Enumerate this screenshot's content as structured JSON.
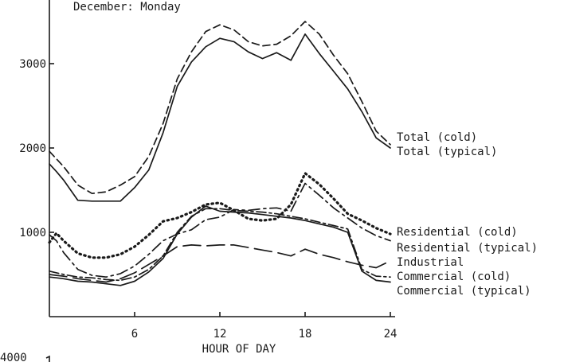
{
  "chart_data": {
    "type": "line",
    "title": "December: Monday",
    "xlabel": "HOUR OF DAY",
    "ylabel": "",
    "xlim": [
      0,
      24
    ],
    "ylim": [
      0,
      4000
    ],
    "x_ticks": [
      6,
      12,
      18,
      24
    ],
    "y_ticks": [
      1000,
      2000,
      3000
    ],
    "lower_panel_top_label": "4000",
    "grid": false,
    "x": [
      0,
      0.5,
      1,
      2,
      3,
      4,
      5,
      6,
      7,
      8,
      9,
      10,
      11,
      12,
      13,
      14,
      15,
      16,
      17,
      18,
      19,
      20,
      21,
      22,
      23,
      24
    ],
    "series": [
      {
        "name": "Total (cold)",
        "style": "dashed",
        "values": [
          1960,
          1870,
          1780,
          1560,
          1460,
          1480,
          1560,
          1660,
          1900,
          2290,
          2820,
          3140,
          3380,
          3460,
          3400,
          3260,
          3210,
          3230,
          3330,
          3500,
          3350,
          3100,
          2880,
          2550,
          2200,
          2040
        ]
      },
      {
        "name": "Total (typical)",
        "style": "solid",
        "values": [
          1810,
          1720,
          1620,
          1380,
          1370,
          1370,
          1370,
          1530,
          1740,
          2180,
          2730,
          3020,
          3200,
          3300,
          3260,
          3140,
          3060,
          3130,
          3040,
          3350,
          3120,
          2910,
          2700,
          2430,
          2120,
          2000
        ]
      },
      {
        "name": "Residential (cold)",
        "style": "dotted",
        "values": [
          880,
          990,
          900,
          750,
          700,
          700,
          740,
          830,
          970,
          1130,
          1170,
          1240,
          1330,
          1350,
          1260,
          1160,
          1140,
          1160,
          1330,
          1700,
          1570,
          1400,
          1220,
          1140,
          1050,
          980
        ]
      },
      {
        "name": "Residential (typical)",
        "style": "dash-dash-dot",
        "values": [
          970,
          900,
          760,
          560,
          490,
          470,
          510,
          600,
          740,
          900,
          980,
          1030,
          1150,
          1180,
          1270,
          1260,
          1280,
          1290,
          1250,
          1580,
          1440,
          1290,
          1170,
          1050,
          960,
          900
        ]
      },
      {
        "name": "Industrial",
        "style": "long-dash",
        "values": [
          500,
          490,
          480,
          450,
          430,
          410,
          450,
          520,
          620,
          720,
          830,
          850,
          840,
          850,
          850,
          820,
          790,
          760,
          720,
          800,
          740,
          700,
          650,
          610,
          580,
          660
        ]
      },
      {
        "name": "Commercial (cold)",
        "style": "dash-dot",
        "values": [
          540,
          520,
          500,
          470,
          460,
          440,
          430,
          470,
          560,
          720,
          1000,
          1190,
          1280,
          1280,
          1260,
          1250,
          1240,
          1220,
          1190,
          1160,
          1120,
          1080,
          1040,
          560,
          480,
          470
        ]
      },
      {
        "name": "Commercial (typical)",
        "style": "solid",
        "values": [
          470,
          460,
          450,
          420,
          410,
          390,
          370,
          420,
          530,
          690,
          980,
          1180,
          1310,
          1250,
          1240,
          1230,
          1210,
          1190,
          1170,
          1140,
          1100,
          1060,
          1000,
          540,
          430,
          410
        ]
      }
    ]
  }
}
